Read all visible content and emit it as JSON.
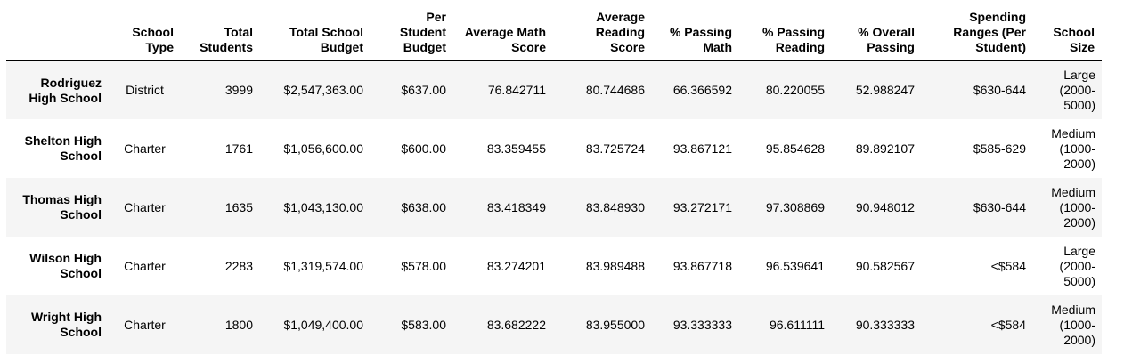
{
  "table": {
    "headers": {
      "index": "",
      "school_type": "School Type",
      "total_students": "Total Students",
      "total_budget": "Total School Budget",
      "per_student_budget": "Per Student Budget",
      "avg_math": "Average Math Score",
      "avg_reading": "Average Reading Score",
      "pct_math": "% Passing Math",
      "pct_reading": "% Passing Reading",
      "pct_overall": "% Overall Passing",
      "spending_range": "Spending Ranges (Per Student)",
      "school_size": "School Size"
    },
    "rows": [
      {
        "name": "Rodriguez High School",
        "school_type": "District",
        "total_students": "3999",
        "total_budget": "$2,547,363.00",
        "per_student_budget": "$637.00",
        "avg_math": "76.842711",
        "avg_reading": "80.744686",
        "pct_math": "66.366592",
        "pct_reading": "80.220055",
        "pct_overall": "52.988247",
        "spending_range": "$630-644",
        "school_size": "Large (2000-5000)"
      },
      {
        "name": "Shelton High School",
        "school_type": "Charter",
        "total_students": "1761",
        "total_budget": "$1,056,600.00",
        "per_student_budget": "$600.00",
        "avg_math": "83.359455",
        "avg_reading": "83.725724",
        "pct_math": "93.867121",
        "pct_reading": "95.854628",
        "pct_overall": "89.892107",
        "spending_range": "$585-629",
        "school_size": "Medium (1000-2000)"
      },
      {
        "name": "Thomas High School",
        "school_type": "Charter",
        "total_students": "1635",
        "total_budget": "$1,043,130.00",
        "per_student_budget": "$638.00",
        "avg_math": "83.418349",
        "avg_reading": "83.848930",
        "pct_math": "93.272171",
        "pct_reading": "97.308869",
        "pct_overall": "90.948012",
        "spending_range": "$630-644",
        "school_size": "Medium (1000-2000)"
      },
      {
        "name": "Wilson High School",
        "school_type": "Charter",
        "total_students": "2283",
        "total_budget": "$1,319,574.00",
        "per_student_budget": "$578.00",
        "avg_math": "83.274201",
        "avg_reading": "83.989488",
        "pct_math": "93.867718",
        "pct_reading": "96.539641",
        "pct_overall": "90.582567",
        "spending_range": "<$584",
        "school_size": "Large (2000-5000)"
      },
      {
        "name": "Wright High School",
        "school_type": "Charter",
        "total_students": "1800",
        "total_budget": "$1,049,400.00",
        "per_student_budget": "$583.00",
        "avg_math": "83.682222",
        "avg_reading": "83.955000",
        "pct_math": "93.333333",
        "pct_reading": "96.611111",
        "pct_overall": "90.333333",
        "spending_range": "<$584",
        "school_size": "Medium (1000-2000)"
      }
    ]
  }
}
